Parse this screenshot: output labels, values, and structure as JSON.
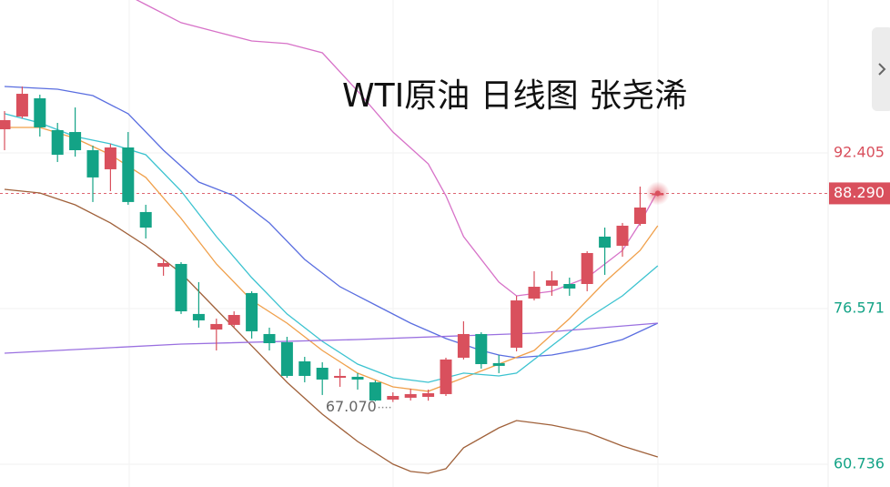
{
  "chart_data": {
    "type": "candlestick",
    "title": "WTI原油 日线图 张尧浠",
    "ylim": [
      58.42,
      107.96
    ],
    "yticks": [
      60.736,
      76.571,
      92.405
    ],
    "up_color": "#d9505d",
    "down_color": "#13a386",
    "last_price": {
      "value": 88.29,
      "label": "88.290"
    },
    "low_marker": {
      "value": 67.07,
      "label": "67.070",
      "index": 22
    },
    "ohlc": [
      [
        94.81,
        96.66,
        92.68,
        95.74
      ],
      [
        96.11,
        99.16,
        95.92,
        98.42
      ],
      [
        97.96,
        98.33,
        94.07,
        95.0
      ],
      [
        94.72,
        95.46,
        91.48,
        92.22
      ],
      [
        94.53,
        97.03,
        92.03,
        92.68
      ],
      [
        92.68,
        93.15,
        87.41,
        89.91
      ],
      [
        90.74,
        93.33,
        88.52,
        92.96
      ],
      [
        92.96,
        94.53,
        87.13,
        87.41
      ],
      [
        86.39,
        87.13,
        83.7,
        84.81
      ],
      [
        80.83,
        81.66,
        79.91,
        81.2
      ],
      [
        81.11,
        81.29,
        76.02,
        76.29
      ],
      [
        76.02,
        79.26,
        74.63,
        75.37
      ],
      [
        74.44,
        75.55,
        72.31,
        75.0
      ],
      [
        74.91,
        76.29,
        74.63,
        75.92
      ],
      [
        78.15,
        78.33,
        73.52,
        74.26
      ],
      [
        73.98,
        74.63,
        72.31,
        73.05
      ],
      [
        73.15,
        73.7,
        69.53,
        69.72
      ],
      [
        71.2,
        71.66,
        69.07,
        69.72
      ],
      [
        70.55,
        71.11,
        67.78,
        69.35
      ],
      [
        69.53,
        70.46,
        68.61,
        69.72
      ],
      [
        69.63,
        70.0,
        68.33,
        69.35
      ],
      [
        69.07,
        69.26,
        67.15,
        67.22
      ],
      [
        67.31,
        68.05,
        67.07,
        67.68
      ],
      [
        67.5,
        68.42,
        67.22,
        67.87
      ],
      [
        67.59,
        68.33,
        67.2,
        67.96
      ],
      [
        67.87,
        71.57,
        67.68,
        71.39
      ],
      [
        71.57,
        75.28,
        71.39,
        73.98
      ],
      [
        73.98,
        74.16,
        70.46,
        70.92
      ],
      [
        71.02,
        71.85,
        70.0,
        70.74
      ],
      [
        72.59,
        77.87,
        72.22,
        77.4
      ],
      [
        77.59,
        80.37,
        77.4,
        78.79
      ],
      [
        78.89,
        80.37,
        77.87,
        79.44
      ],
      [
        79.07,
        79.72,
        77.87,
        78.61
      ],
      [
        79.07,
        82.4,
        78.33,
        82.22
      ],
      [
        83.89,
        84.81,
        80.0,
        82.77
      ],
      [
        82.96,
        85.28,
        81.85,
        85.0
      ],
      [
        85.18,
        88.98,
        85.0,
        86.85
      ],
      [
        88.1,
        88.5,
        88.0,
        88.29
      ]
    ],
    "lines": [
      {
        "color": "#d772c8",
        "x": [
          7,
          8,
          10,
          12,
          14,
          16,
          18,
          20,
          22,
          24,
          25,
          26,
          28,
          29,
          31,
          33,
          35,
          36,
          37
        ],
        "values": [
          108.42,
          107.5,
          105.65,
          104.72,
          103.79,
          103.52,
          102.59,
          98.7,
          94.53,
          91.29,
          88.05,
          83.89,
          79.26,
          77.87,
          78.33,
          79.72,
          82.49,
          85.28,
          88.52
        ]
      },
      {
        "color": "#5a6ee0",
        "x": [
          0,
          3,
          5,
          7,
          9,
          11,
          13,
          15,
          17,
          19,
          21,
          23,
          25,
          27,
          28,
          29,
          31,
          33,
          35,
          37
        ],
        "values": [
          99.16,
          98.89,
          98.24,
          96.39,
          92.68,
          89.44,
          88.05,
          85.28,
          81.57,
          78.79,
          76.94,
          75.09,
          73.52,
          72.31,
          71.85,
          71.57,
          71.85,
          72.5,
          73.42,
          75.09
        ]
      },
      {
        "color": "#a0613a",
        "x": [
          0,
          2,
          4,
          6,
          8,
          10,
          12,
          14,
          16,
          18,
          20,
          22,
          23,
          24,
          25,
          26,
          28,
          29,
          31,
          33,
          35,
          37
        ],
        "values": [
          88.7,
          88.33,
          87.13,
          85.28,
          82.96,
          80.18,
          76.48,
          72.78,
          69.07,
          65.83,
          63.05,
          60.74,
          60.0,
          59.81,
          60.28,
          62.41,
          64.44,
          65.18,
          64.72,
          63.98,
          62.59,
          61.48
        ]
      },
      {
        "color": "#f0a04b",
        "x": [
          0,
          2,
          4,
          6,
          8,
          10,
          12,
          14,
          16,
          18,
          20,
          22,
          24,
          26,
          28,
          30,
          32,
          34,
          36,
          37
        ],
        "values": [
          95.0,
          95.0,
          93.89,
          92.22,
          89.91,
          85.74,
          81.11,
          77.4,
          75.09,
          72.31,
          70.0,
          68.61,
          68.15,
          69.53,
          70.92,
          72.31,
          75.55,
          79.26,
          82.49,
          85.0
        ]
      },
      {
        "color": "#3cc3d0",
        "x": [
          0,
          2,
          4,
          6,
          8,
          10,
          12,
          14,
          16,
          18,
          20,
          22,
          24,
          26,
          28,
          29,
          31,
          33,
          35,
          37
        ],
        "values": [
          96.39,
          95.46,
          94.07,
          93.33,
          92.22,
          88.52,
          83.89,
          79.72,
          76.02,
          73.24,
          70.92,
          69.53,
          69.07,
          70.0,
          69.72,
          70.0,
          72.78,
          75.55,
          77.87,
          80.92
        ]
      },
      {
        "color": "#9a70e0",
        "x": [
          0,
          10,
          20,
          30,
          37
        ],
        "values": [
          72.03,
          72.96,
          73.42,
          74.07,
          75.09
        ]
      }
    ]
  }
}
